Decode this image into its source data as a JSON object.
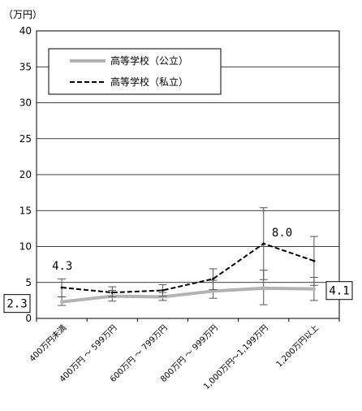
{
  "chart_data": {
    "type": "line",
    "title": "",
    "xlabel": "",
    "ylabel": "",
    "unit_label": "（万円）",
    "ylim": [
      0,
      40
    ],
    "yticks": [
      0,
      5,
      10,
      15,
      20,
      25,
      30,
      35,
      40
    ],
    "grid": true,
    "legend_position": "top-left",
    "categories": [
      "400万円未満",
      "400万円 ～ 599万円",
      "600万円 ～ 799万円",
      "800万円 ～ 999万円",
      "1,000万円～1,199万円",
      "1,200万円以上"
    ],
    "series": [
      {
        "name": "高等学校（公立）",
        "style": "solid-gray",
        "color": "#b3b3b3",
        "values": [
          2.3,
          3.1,
          3.0,
          3.8,
          4.2,
          4.1
        ],
        "error_low": [
          1.8,
          2.4,
          2.5,
          2.8,
          1.9,
          2.5
        ],
        "error_high": [
          3.0,
          3.9,
          3.6,
          5.3,
          6.7,
          5.7
        ]
      },
      {
        "name": "高等学校（私立）",
        "style": "dashed-black",
        "color": "#000000",
        "values": [
          4.3,
          3.6,
          3.9,
          5.5,
          10.4,
          8.0
        ],
        "error_low": [
          3.0,
          3.0,
          3.1,
          4.0,
          5.4,
          4.6
        ],
        "error_high": [
          5.5,
          4.4,
          4.7,
          6.9,
          15.4,
          11.4
        ]
      }
    ],
    "annotations": [
      {
        "text": "4.3",
        "series": 1,
        "index": 0,
        "boxed": false
      },
      {
        "text": "2.3",
        "series": 0,
        "index": 0,
        "boxed": true
      },
      {
        "text": "8.0",
        "series": 1,
        "index": 5,
        "boxed": false
      },
      {
        "text": "4.1",
        "series": 0,
        "index": 5,
        "boxed": true
      }
    ]
  }
}
